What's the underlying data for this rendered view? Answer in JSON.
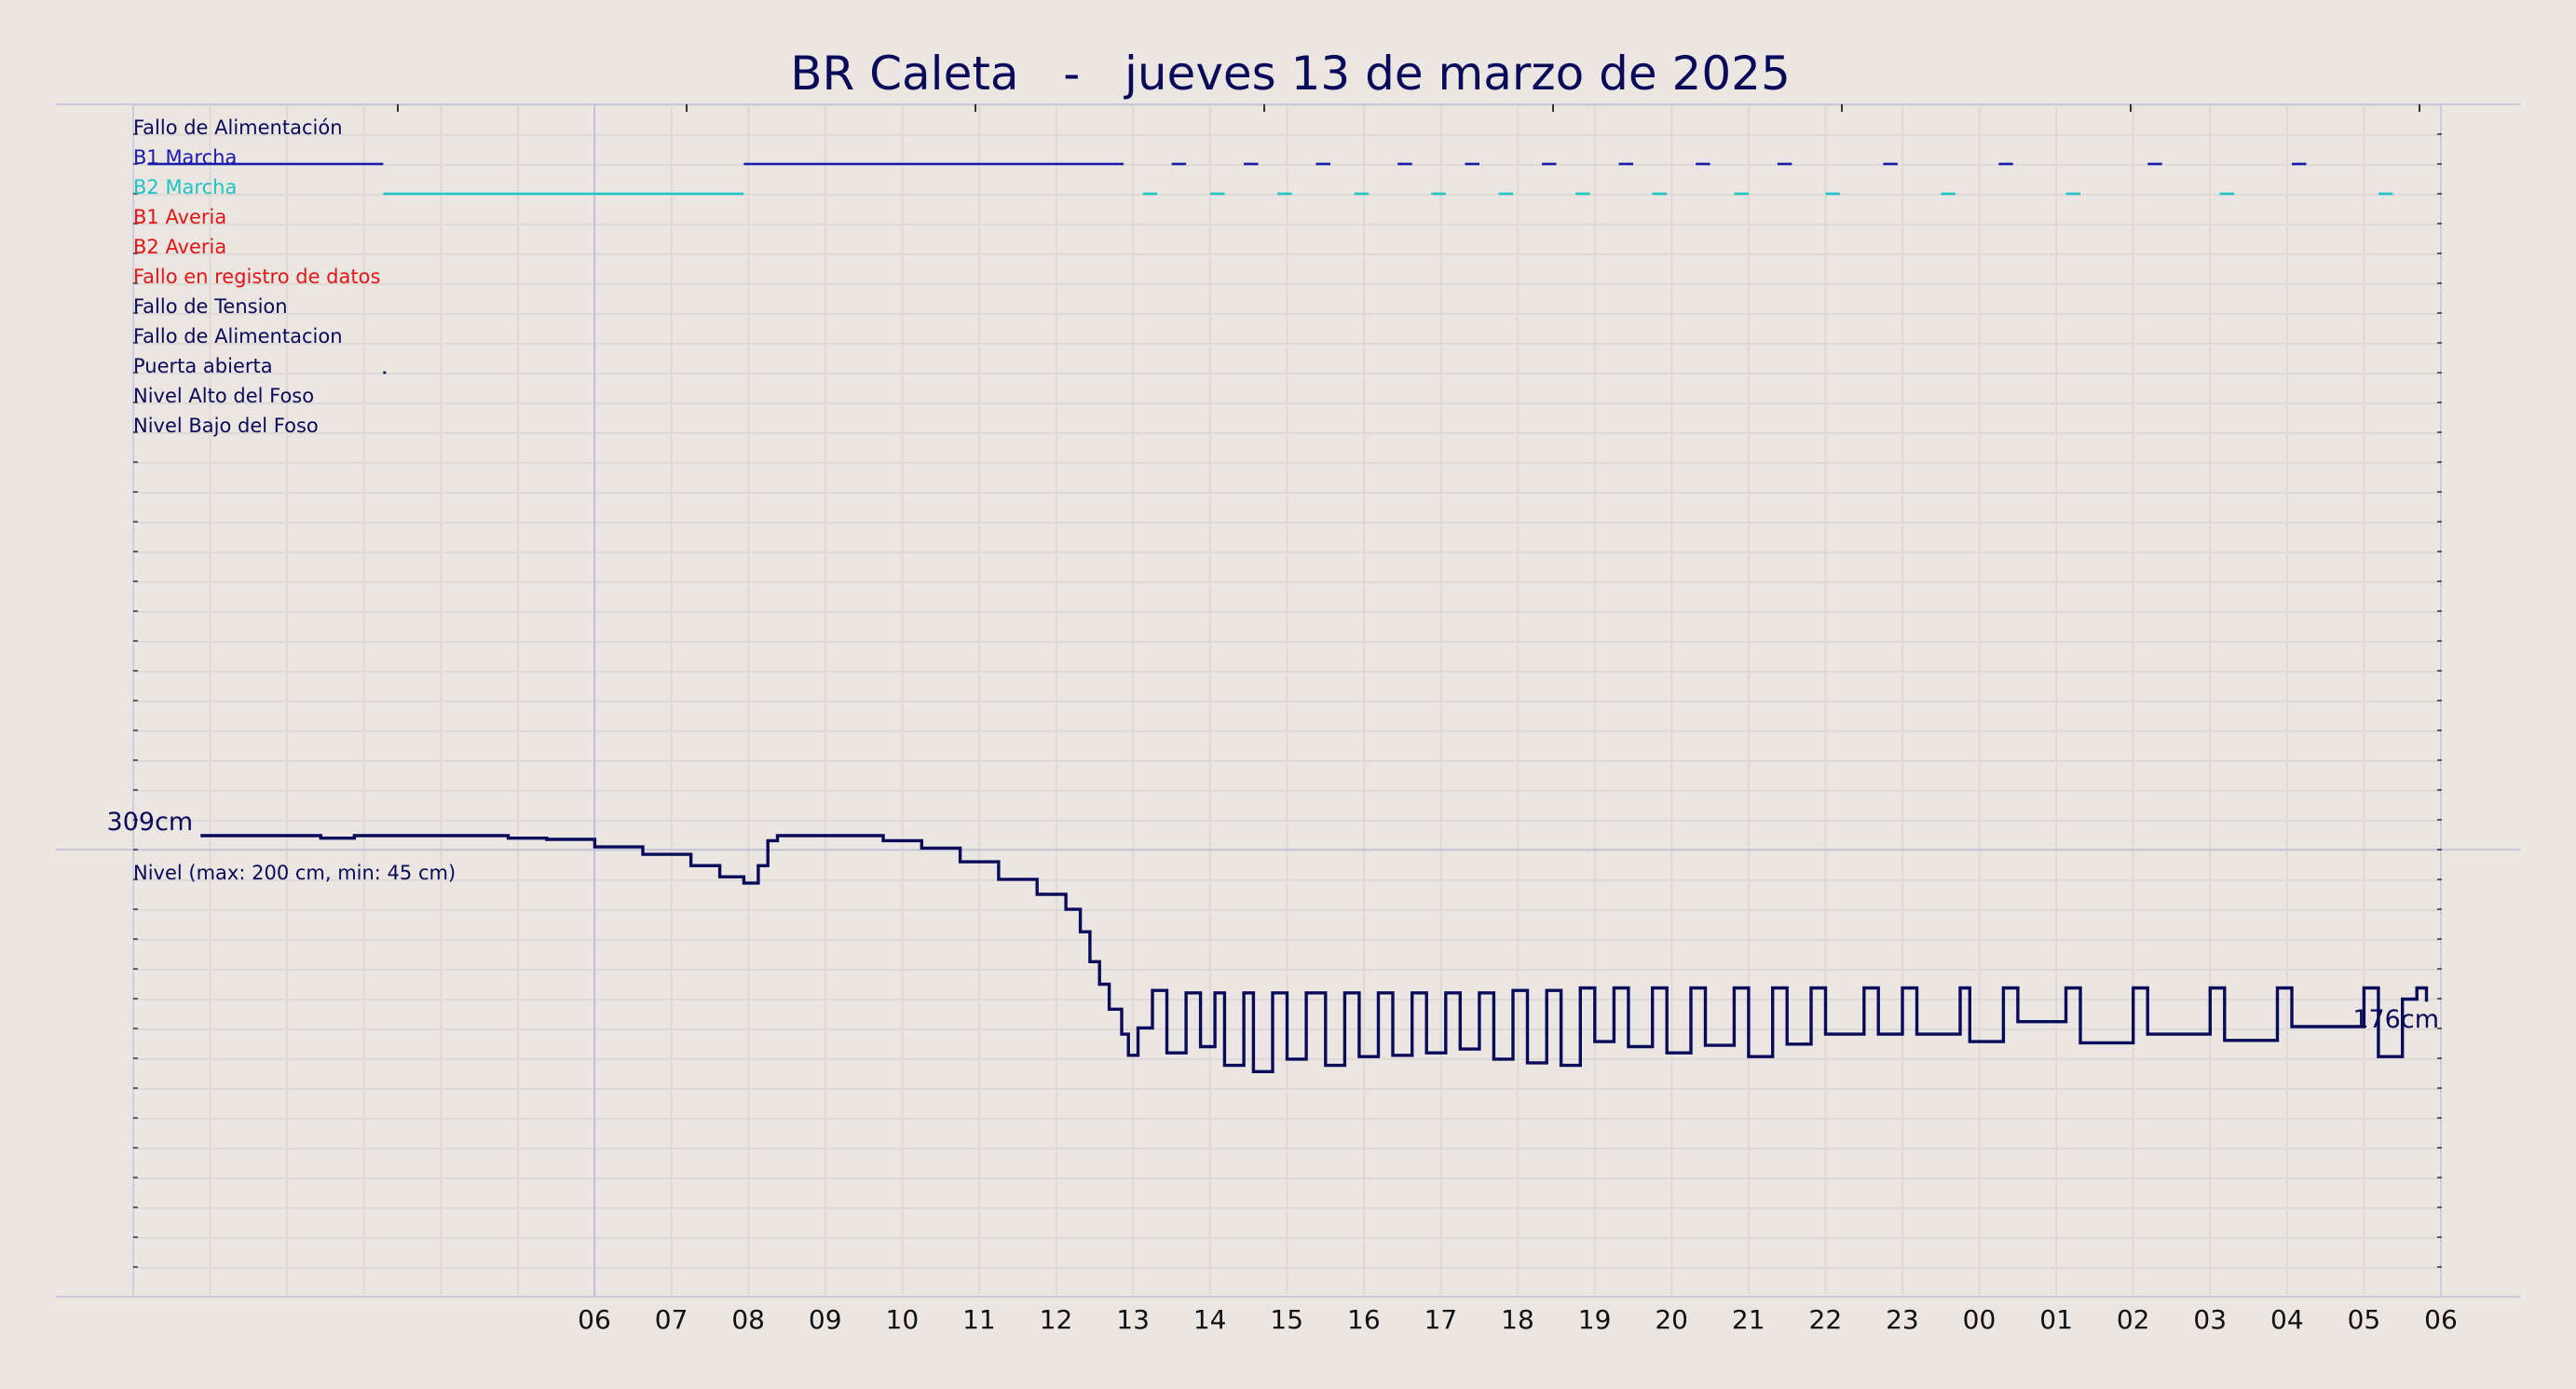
{
  "title": "BR Caleta   -   jueves 13 de marzo de 2025",
  "colors": {
    "background": "#ebe6e1",
    "grid": "#ddd9d6",
    "frame": "#c8c8dc",
    "text_dark": "#0a0a5a",
    "text_blue": "#1a1ab4",
    "text_cyan": "#1ec4c4",
    "text_red": "#e61414",
    "series_b1": "#1a1aa8",
    "series_b2": "#20c4c4",
    "series_level": "#0a0a5a"
  },
  "chart_data": {
    "type": "line",
    "x_ticks": [
      "06",
      "07",
      "08",
      "09",
      "10",
      "11",
      "12",
      "13",
      "14",
      "15",
      "16",
      "17",
      "18",
      "19",
      "20",
      "21",
      "22",
      "23",
      "00",
      "01",
      "02",
      "03",
      "04",
      "05",
      "06"
    ],
    "x_range_hours": [
      6,
      30
    ],
    "digital_signals": {
      "type": "timeline",
      "rows": [
        {
          "label": "Fallo de Alimentación",
          "color": "dark",
          "intervals": []
        },
        {
          "label": "B1 Marcha",
          "color": "blue",
          "intervals": [
            [
              6.15,
              8.6
            ],
            [
              12.35,
              16.3
            ],
            [
              16.8,
              16.95
            ],
            [
              17.55,
              17.7
            ],
            [
              18.3,
              18.45
            ],
            [
              19.15,
              19.3
            ],
            [
              19.85,
              20.0
            ],
            [
              20.65,
              20.8
            ],
            [
              21.45,
              21.6
            ],
            [
              22.25,
              22.4
            ],
            [
              23.1,
              23.25
            ],
            [
              24.2,
              24.35
            ],
            [
              25.4,
              25.55
            ],
            [
              26.95,
              27.1
            ],
            [
              28.45,
              28.6
            ]
          ]
        },
        {
          "label": "B2 Marcha",
          "color": "cyan",
          "intervals": [
            [
              8.6,
              12.35
            ],
            [
              16.5,
              16.65
            ],
            [
              17.2,
              17.35
            ],
            [
              17.9,
              18.05
            ],
            [
              18.7,
              18.85
            ],
            [
              19.5,
              19.65
            ],
            [
              20.2,
              20.35
            ],
            [
              21.0,
              21.15
            ],
            [
              21.8,
              21.95
            ],
            [
              22.65,
              22.8
            ],
            [
              23.6,
              23.75
            ],
            [
              24.8,
              24.95
            ],
            [
              26.1,
              26.25
            ],
            [
              27.7,
              27.85
            ],
            [
              29.35,
              29.5
            ]
          ]
        },
        {
          "label": "B1 Averia",
          "color": "red",
          "intervals": []
        },
        {
          "label": "B2 Averia",
          "color": "red",
          "intervals": []
        },
        {
          "label": "Fallo en registro de datos",
          "color": "red",
          "intervals": []
        },
        {
          "label": "Fallo de Tension",
          "color": "dark",
          "intervals": []
        },
        {
          "label": "Fallo de Alimentacion",
          "color": "dark",
          "intervals": []
        },
        {
          "label": "Puerta abierta",
          "color": "dark",
          "intervals": [
            [
              8.6,
              8.62
            ]
          ]
        },
        {
          "label": "Nivel Alto del Foso",
          "color": "dark",
          "intervals": []
        },
        {
          "label": "Nivel Bajo del Foso",
          "color": "dark",
          "intervals": []
        }
      ]
    },
    "level": {
      "type": "line",
      "label": "Nivel (max: 200 cm, min: 45 cm)",
      "start_label": "309cm",
      "end_label": "176cm",
      "series": [
        {
          "points": [
            [
              6.7,
              309
            ],
            [
              7.6,
              309
            ],
            [
              7.95,
              307
            ],
            [
              8.3,
              309
            ],
            [
              9.6,
              309
            ],
            [
              9.9,
              307
            ],
            [
              10.3,
              306
            ],
            [
              10.8,
              300
            ],
            [
              11.3,
              294
            ],
            [
              11.8,
              285
            ],
            [
              12.1,
              276
            ],
            [
              12.35,
              271
            ],
            [
              12.5,
              285
            ],
            [
              12.6,
              305
            ],
            [
              12.7,
              309
            ],
            [
              13.45,
              309
            ],
            [
              13.8,
              305
            ],
            [
              14.2,
              299
            ],
            [
              14.6,
              288
            ],
            [
              15.0,
              274
            ],
            [
              15.4,
              262
            ],
            [
              15.7,
              250
            ],
            [
              15.85,
              232
            ],
            [
              15.95,
              208
            ],
            [
              16.05,
              190
            ],
            [
              16.15,
              170
            ],
            [
              16.28,
              150
            ],
            [
              16.35,
              133
            ],
            [
              16.45,
              155
            ],
            [
              16.6,
              185
            ],
            [
              16.75,
              135
            ],
            [
              16.95,
              183
            ],
            [
              17.1,
              140
            ],
            [
              17.25,
              183
            ],
            [
              17.35,
              125
            ],
            [
              17.55,
              183
            ],
            [
              17.65,
              120
            ],
            [
              17.85,
              183
            ],
            [
              18.0,
              130
            ],
            [
              18.2,
              183
            ],
            [
              18.4,
              125
            ],
            [
              18.6,
              183
            ],
            [
              18.75,
              132
            ],
            [
              18.95,
              183
            ],
            [
              19.1,
              133
            ],
            [
              19.3,
              183
            ],
            [
              19.45,
              135
            ],
            [
              19.65,
              183
            ],
            [
              19.8,
              138
            ],
            [
              20.0,
              183
            ],
            [
              20.15,
              130
            ],
            [
              20.35,
              185
            ],
            [
              20.5,
              127
            ],
            [
              20.7,
              185
            ],
            [
              20.85,
              125
            ],
            [
              21.05,
              187
            ],
            [
              21.2,
              144
            ],
            [
              21.4,
              187
            ],
            [
              21.55,
              140
            ],
            [
              21.8,
              187
            ],
            [
              21.95,
              135
            ],
            [
              22.2,
              187
            ],
            [
              22.35,
              141
            ],
            [
              22.65,
              187
            ],
            [
              22.8,
              132
            ],
            [
              23.05,
              187
            ],
            [
              23.2,
              142
            ],
            [
              23.45,
              187
            ],
            [
              23.6,
              150
            ],
            [
              24.0,
              187
            ],
            [
              24.15,
              150
            ],
            [
              24.4,
              187
            ],
            [
              24.55,
              150
            ],
            [
              25.0,
              187
            ],
            [
              25.1,
              144
            ],
            [
              25.45,
              187
            ],
            [
              25.6,
              160
            ],
            [
              26.1,
              187
            ],
            [
              26.25,
              143
            ],
            [
              26.8,
              187
            ],
            [
              26.95,
              150
            ],
            [
              27.6,
              187
            ],
            [
              27.75,
              145
            ],
            [
              28.3,
              187
            ],
            [
              28.45,
              156
            ],
            [
              29.2,
              187
            ],
            [
              29.35,
              132
            ],
            [
              29.6,
              178
            ],
            [
              29.75,
              187
            ],
            [
              29.85,
              176
            ]
          ]
        }
      ]
    }
  }
}
